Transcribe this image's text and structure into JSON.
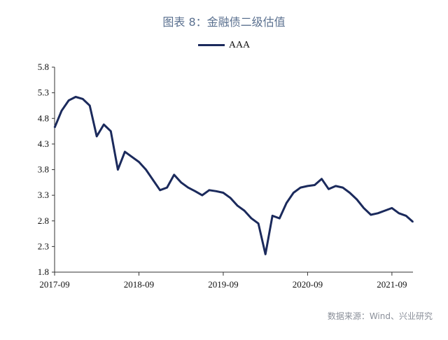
{
  "title": "图表 8：金融债二级估值",
  "source": "数据来源：Wind、兴业研究",
  "colors": {
    "line": "#1b2a5c",
    "axis": "#333333"
  },
  "chart_data": {
    "type": "line",
    "title": "图表 8：金融债二级估值",
    "xlabel": "",
    "ylabel": "",
    "legend": "top-center",
    "grid": false,
    "x_ticks": [
      "2017-09",
      "2018-09",
      "2019-09",
      "2020-09",
      "2021-09"
    ],
    "y_ticks": [
      "5.8",
      "5.3",
      "4.8",
      "4.3",
      "3.8",
      "3.3",
      "2.8",
      "2.3",
      "1.8"
    ],
    "ylim": [
      1.8,
      5.8
    ],
    "series": [
      {
        "name": "AAA",
        "x": [
          "2017-09",
          "2017-10",
          "2017-11",
          "2017-12",
          "2018-01",
          "2018-02",
          "2018-03",
          "2018-04",
          "2018-05",
          "2018-06",
          "2018-07",
          "2018-08",
          "2018-09",
          "2018-10",
          "2018-11",
          "2018-12",
          "2019-01",
          "2019-02",
          "2019-03",
          "2019-04",
          "2019-05",
          "2019-06",
          "2019-07",
          "2019-08",
          "2019-09",
          "2019-10",
          "2019-11",
          "2019-12",
          "2020-01",
          "2020-02",
          "2020-03",
          "2020-04",
          "2020-05",
          "2020-06",
          "2020-07",
          "2020-08",
          "2020-09",
          "2020-10",
          "2020-11",
          "2020-12",
          "2021-01",
          "2021-02",
          "2021-03",
          "2021-04",
          "2021-05",
          "2021-06",
          "2021-07",
          "2021-08",
          "2021-09",
          "2021-10",
          "2021-11",
          "2021-12"
        ],
        "values": [
          4.62,
          4.95,
          5.15,
          5.22,
          5.18,
          5.05,
          4.45,
          4.68,
          4.55,
          3.8,
          4.15,
          4.05,
          3.95,
          3.8,
          3.6,
          3.4,
          3.45,
          3.7,
          3.55,
          3.45,
          3.38,
          3.3,
          3.4,
          3.38,
          3.35,
          3.25,
          3.1,
          3.0,
          2.85,
          2.75,
          2.15,
          2.9,
          2.85,
          3.15,
          3.35,
          3.45,
          3.48,
          3.5,
          3.62,
          3.42,
          3.48,
          3.45,
          3.35,
          3.22,
          3.05,
          2.92,
          2.95,
          3.0,
          3.05,
          2.95,
          2.9,
          2.78
        ]
      }
    ]
  }
}
